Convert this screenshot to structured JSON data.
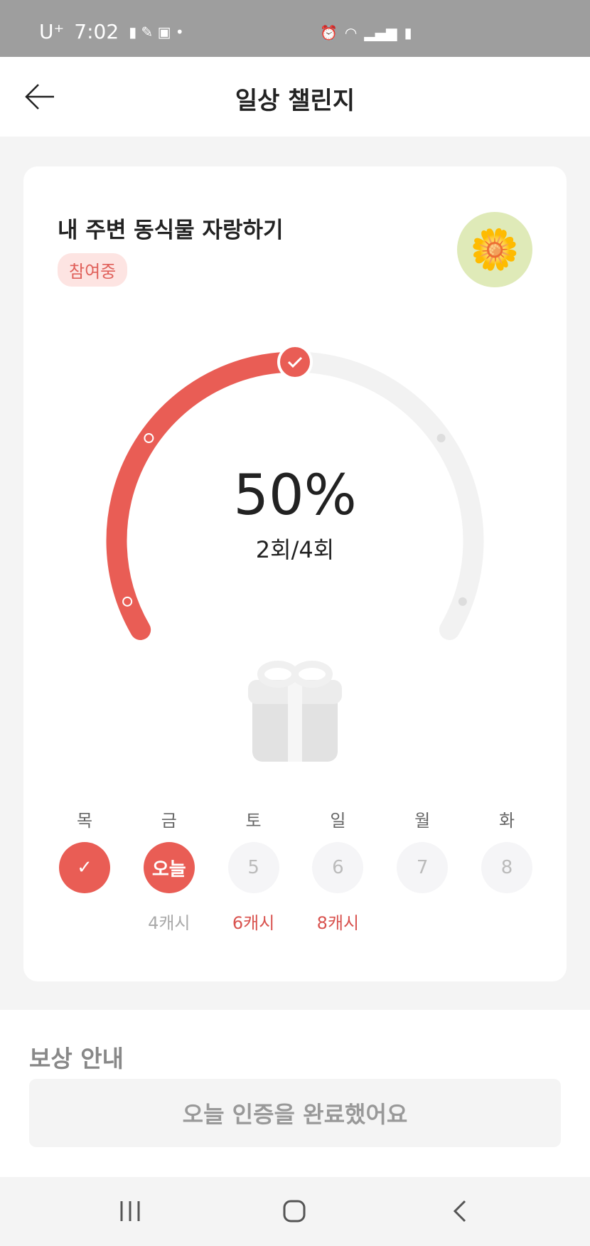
{
  "status_bar": {
    "carrier": "U⁺",
    "time": "7:02"
  },
  "header": {
    "title": "일상 챌린지",
    "back_icon": "arrow-left-icon"
  },
  "challenge": {
    "title": "내 주변 동식물 자랑하기",
    "status_badge": "참여중",
    "image": "flower-icon",
    "progress_percent": 50,
    "progress_label": "50%",
    "count_label": "2회/4회",
    "accent_color": "#e95d55"
  },
  "days": [
    {
      "label": "목",
      "value": "✓",
      "state": "done",
      "reward": ""
    },
    {
      "label": "금",
      "value": "오늘",
      "state": "today",
      "reward": "4캐시"
    },
    {
      "label": "토",
      "value": "5",
      "state": "future",
      "reward": "6캐시"
    },
    {
      "label": "일",
      "value": "6",
      "state": "future",
      "reward": "8캐시"
    },
    {
      "label": "월",
      "value": "7",
      "state": "future",
      "reward": ""
    },
    {
      "label": "화",
      "value": "8",
      "state": "future",
      "reward": ""
    }
  ],
  "reward_section": {
    "title": "보상 안내",
    "button_label": "오늘 인증을 완료했어요"
  }
}
